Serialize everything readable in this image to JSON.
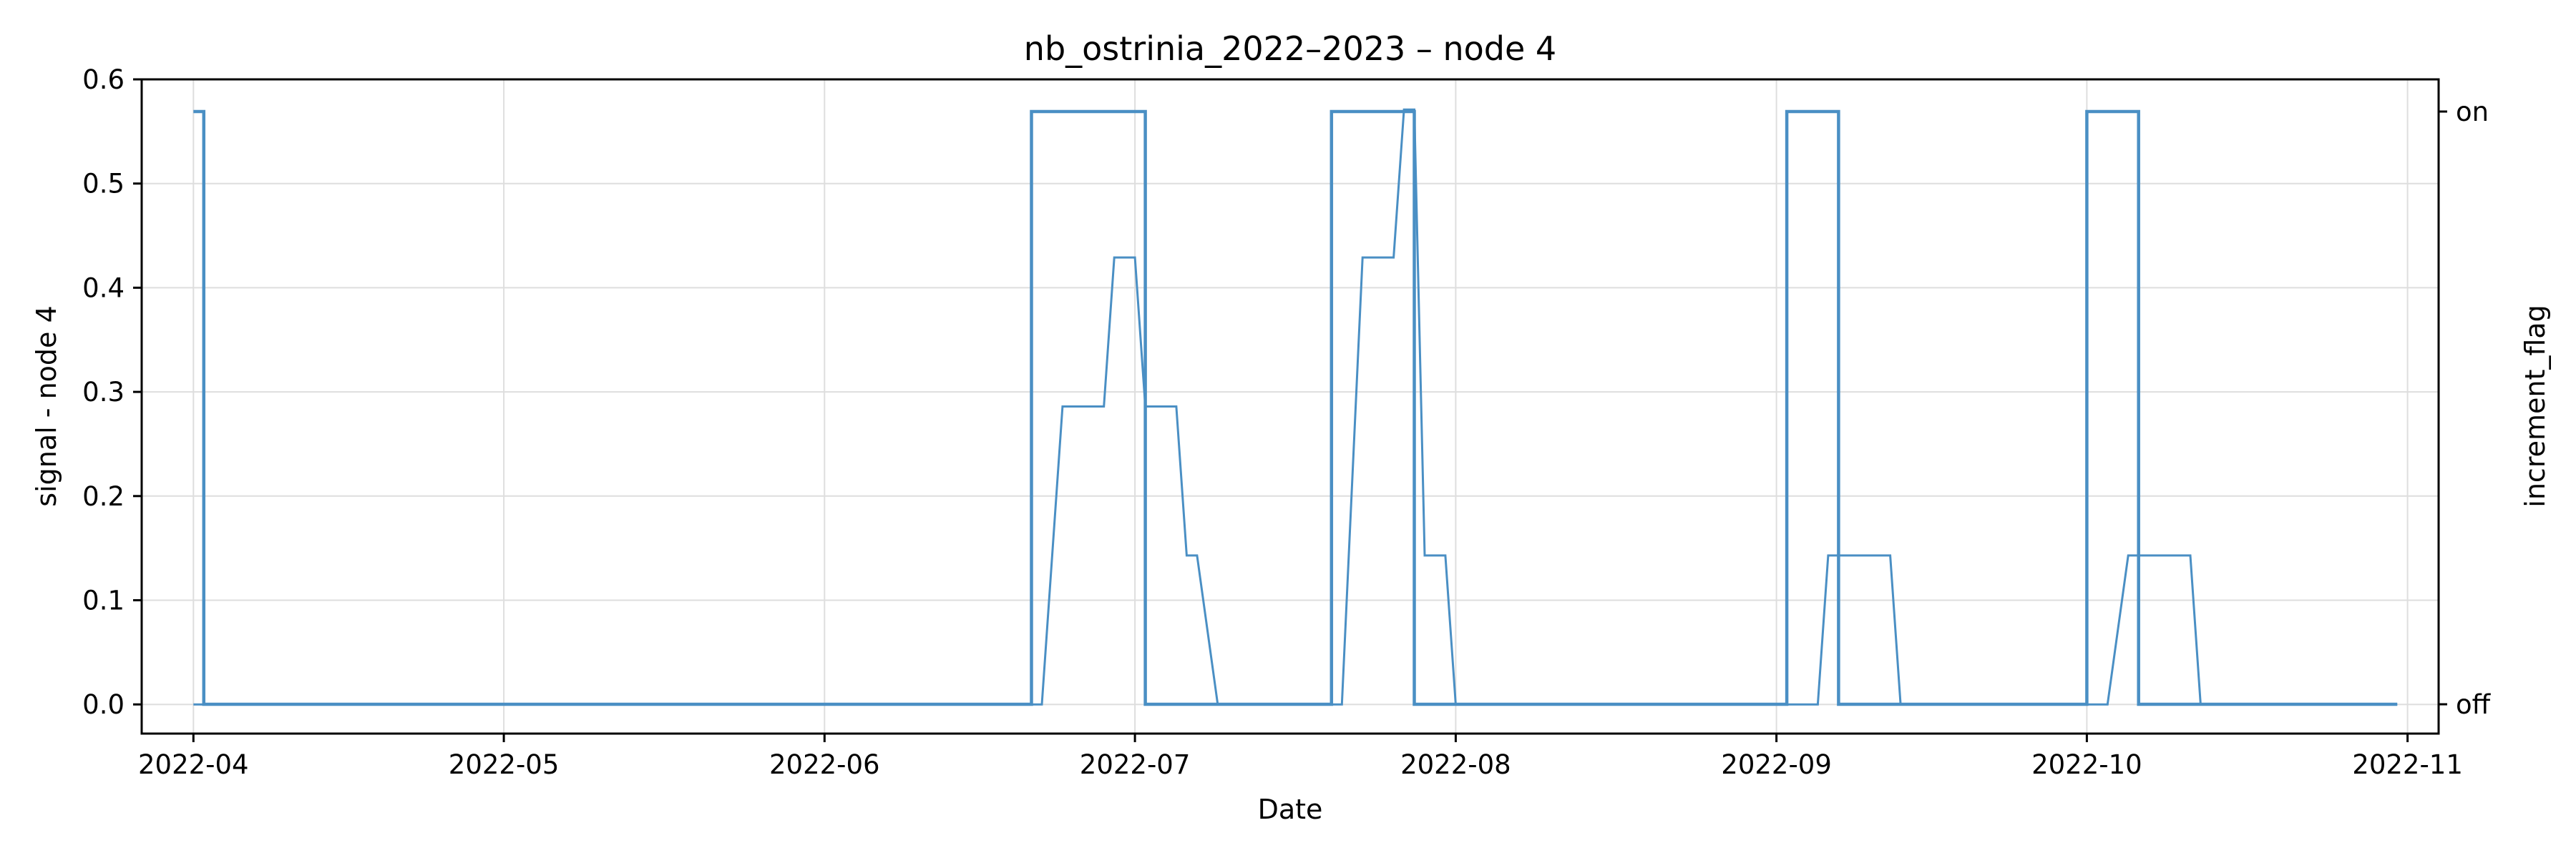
{
  "chart_data": {
    "type": "line",
    "title": "nb_ostrinia_2022–2023 – node 4",
    "xlabel": "Date",
    "ylabel": "signal - node 4",
    "y2label": "increment_flag",
    "xlim": [
      "2022-03-27",
      "2022-11-04"
    ],
    "ylim": [
      -0.028,
      0.6
    ],
    "y_ticks": [
      0.0,
      0.1,
      0.2,
      0.3,
      0.4,
      0.5,
      0.6
    ],
    "y_tick_labels": [
      "0.0",
      "0.1",
      "0.2",
      "0.3",
      "0.4",
      "0.5",
      "0.6"
    ],
    "x_ticks": [
      "2022-04-01",
      "2022-05-01",
      "2022-06-01",
      "2022-07-01",
      "2022-08-01",
      "2022-09-01",
      "2022-10-01",
      "2022-11-01"
    ],
    "x_tick_labels": [
      "2022-04",
      "2022-05",
      "2022-06",
      "2022-07",
      "2022-08",
      "2022-09",
      "2022-10",
      "2022-11"
    ],
    "y2_ticks": [
      0,
      1
    ],
    "y2_tick_labels": [
      "off",
      "on"
    ],
    "grid": true,
    "legend": "none",
    "color": "#4a8fc4",
    "series": [
      {
        "axis": "left",
        "line_width": "thin",
        "points": [
          [
            "2022-04-01",
            0.0
          ],
          [
            "2022-06-22",
            0.0
          ],
          [
            "2022-06-24",
            0.286
          ],
          [
            "2022-06-27",
            0.286
          ],
          [
            "2022-06-28",
            0.286
          ],
          [
            "2022-06-29",
            0.429
          ],
          [
            "2022-07-01",
            0.429
          ],
          [
            "2022-07-02",
            0.286
          ],
          [
            "2022-07-05",
            0.286
          ],
          [
            "2022-07-06",
            0.143
          ],
          [
            "2022-07-07",
            0.143
          ],
          [
            "2022-07-09",
            0.0
          ],
          [
            "2022-07-21",
            0.0
          ],
          [
            "2022-07-23",
            0.429
          ],
          [
            "2022-07-26",
            0.429
          ],
          [
            "2022-07-27",
            0.571
          ],
          [
            "2022-07-28",
            0.571
          ],
          [
            "2022-07-29",
            0.143
          ],
          [
            "2022-07-31",
            0.143
          ],
          [
            "2022-08-01",
            0.0
          ],
          [
            "2022-09-05",
            0.0
          ],
          [
            "2022-09-06",
            0.143
          ],
          [
            "2022-09-12",
            0.143
          ],
          [
            "2022-09-13",
            0.0
          ],
          [
            "2022-10-03",
            0.0
          ],
          [
            "2022-10-05",
            0.143
          ],
          [
            "2022-10-11",
            0.143
          ],
          [
            "2022-10-12",
            0.0
          ],
          [
            "2022-10-31",
            0.0
          ]
        ]
      },
      {
        "axis": "right",
        "line_width": "thick",
        "step": "post",
        "points": [
          [
            "2022-04-01",
            1
          ],
          [
            "2022-04-02",
            0
          ],
          [
            "2022-06-21",
            1
          ],
          [
            "2022-07-02",
            0
          ],
          [
            "2022-07-20",
            1
          ],
          [
            "2022-07-28",
            0
          ],
          [
            "2022-09-02",
            1
          ],
          [
            "2022-09-07",
            0
          ],
          [
            "2022-10-01",
            1
          ],
          [
            "2022-10-06",
            0
          ],
          [
            "2022-10-31",
            0
          ]
        ]
      }
    ]
  }
}
